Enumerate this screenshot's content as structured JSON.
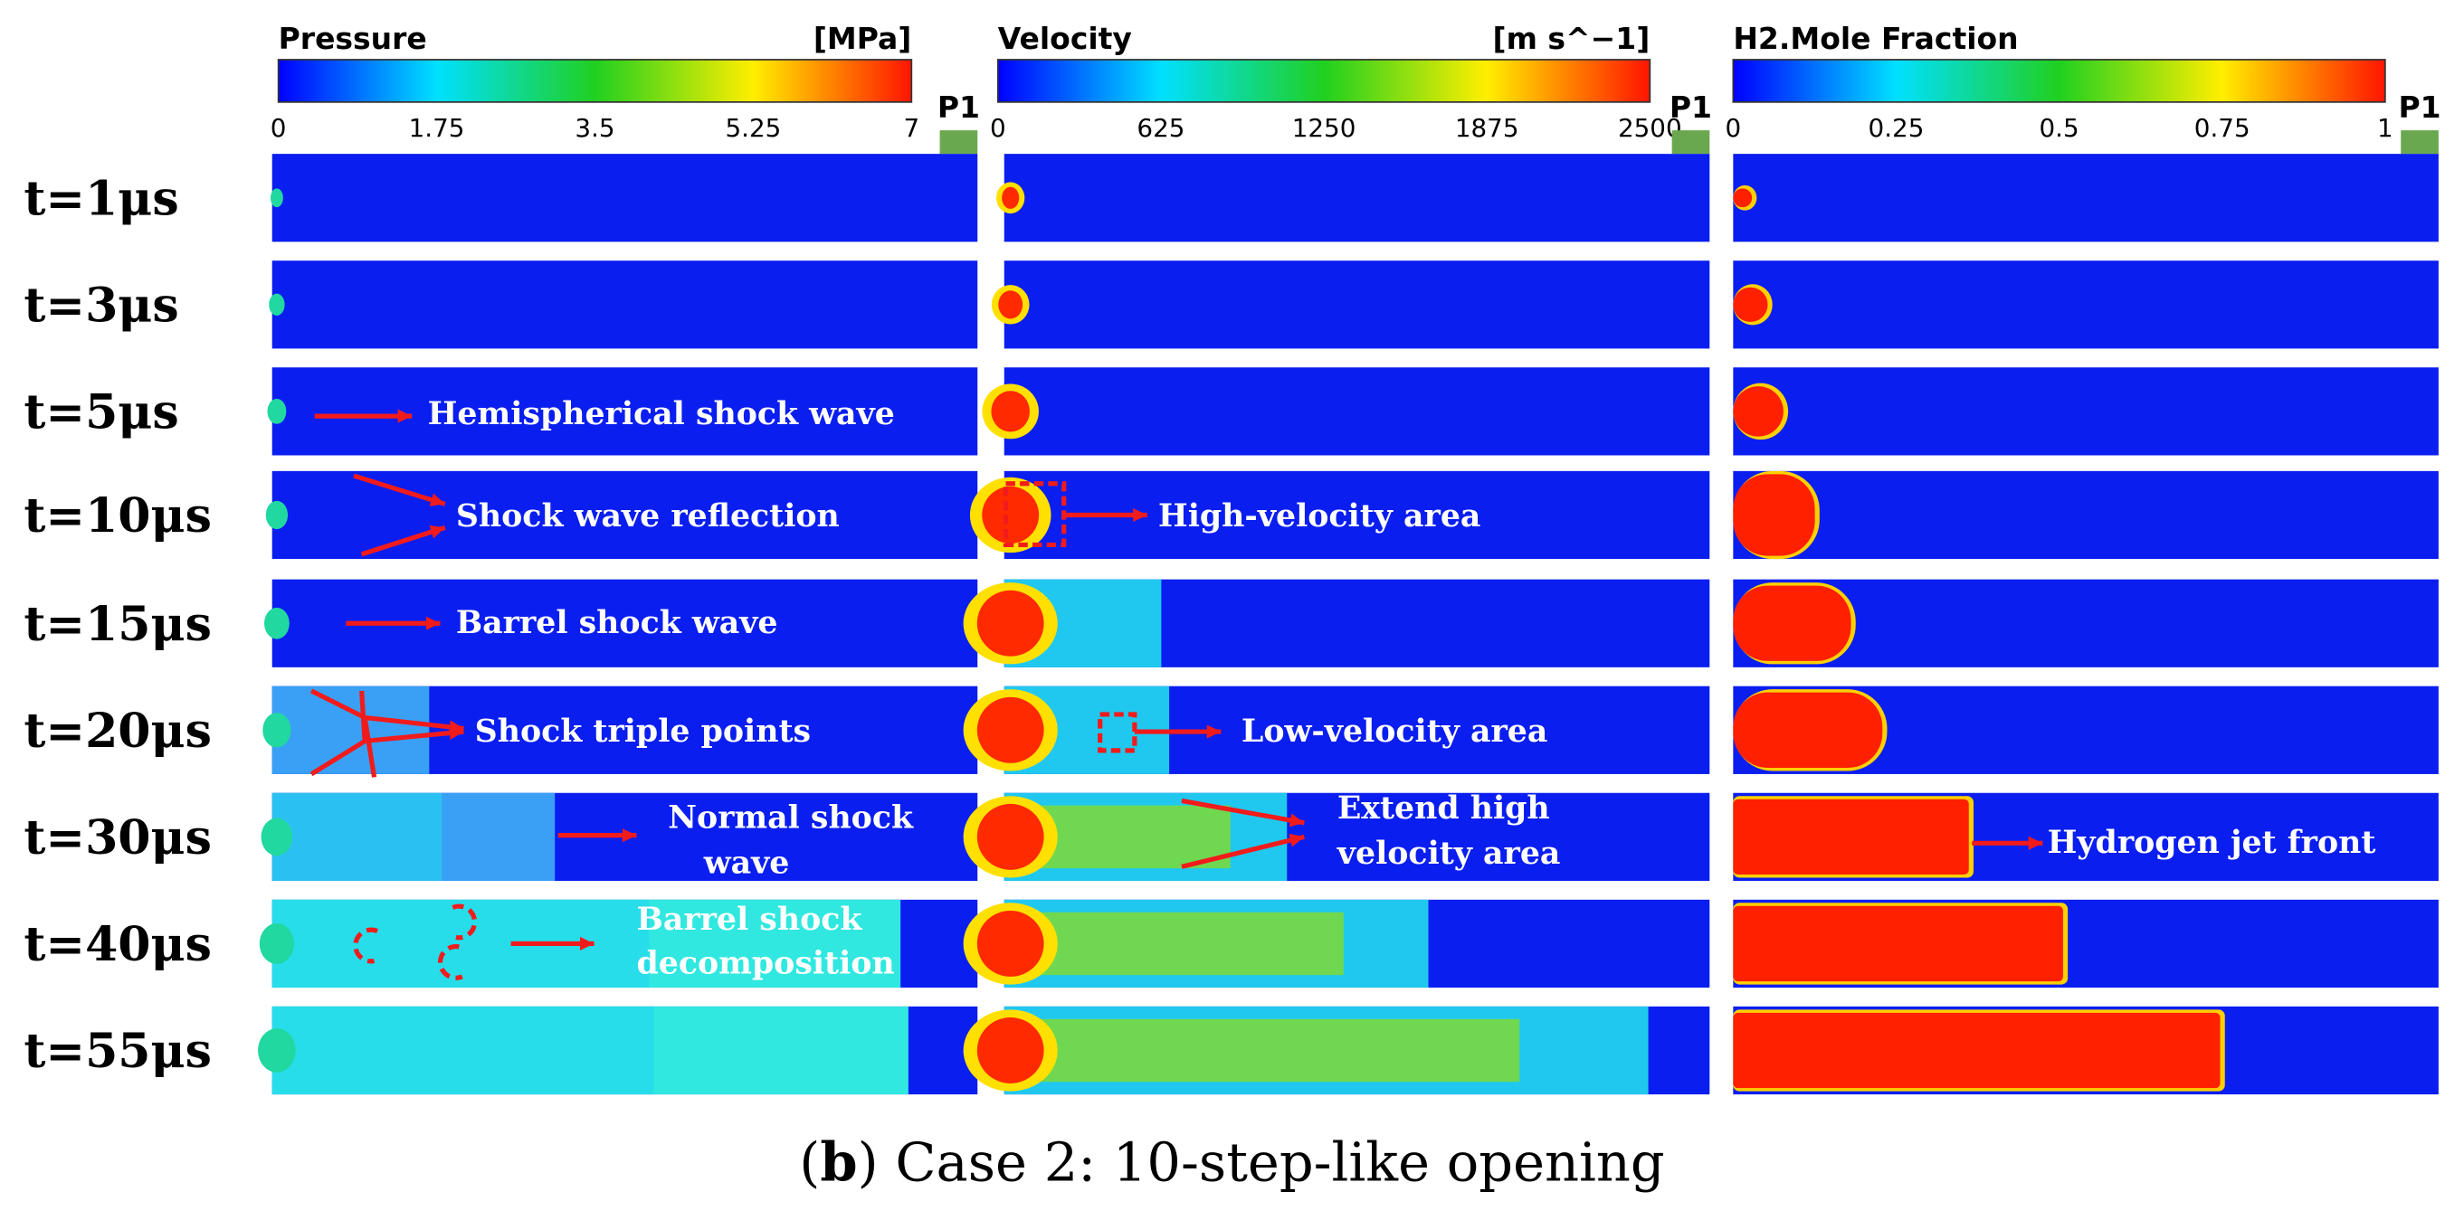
{
  "columns": [
    {
      "title": "Pressure",
      "unit": "[MPa]",
      "ticks": [
        "0",
        "1.75",
        "3.5",
        "5.25",
        "7"
      ],
      "probe": "P1"
    },
    {
      "title": "Velocity",
      "unit": "[m s^−1]",
      "ticks": [
        "0",
        "625",
        "1250",
        "1875",
        "2500"
      ],
      "probe": "P1"
    },
    {
      "title": "H2.Mole Fraction",
      "ticks": [
        "0",
        "0.25",
        "0.5",
        "0.75",
        "1"
      ],
      "probe": "P1"
    }
  ],
  "times": [
    "t=1μs",
    "t=3μs",
    "t=5μs",
    "t=10μs",
    "t=15μs",
    "t=20μs",
    "t=30μs",
    "t=40μs",
    "t=55μs"
  ],
  "annotations": [
    {
      "lines": [
        "Hemispherical shock wave"
      ]
    },
    {
      "lines": [
        "Shock wave reflection"
      ]
    },
    {
      "lines": [
        "Barrel shock wave"
      ]
    },
    {
      "lines": [
        "Shock triple points"
      ]
    },
    {
      "lines": [
        "Normal shock",
        "wave"
      ]
    },
    {
      "lines": [
        "Barrel shock",
        "decomposition"
      ]
    },
    {
      "lines": [
        "High-velocity area"
      ]
    },
    {
      "lines": [
        "Low-velocity area"
      ]
    },
    {
      "lines": [
        "Extend high",
        "velocity area"
      ]
    },
    {
      "lines": [
        "Hydrogen jet front"
      ]
    }
  ],
  "caption": {
    "open": "(",
    "label": "b",
    "text": ") Case 2: 10-step-like opening"
  }
}
